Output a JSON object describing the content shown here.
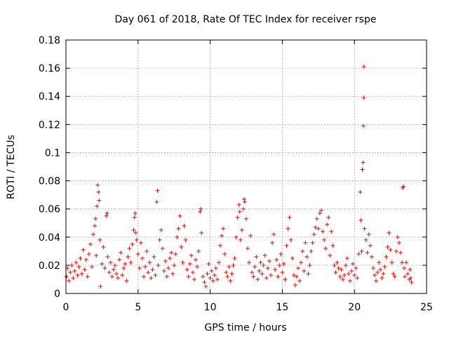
{
  "chart_data": {
    "type": "scatter",
    "title": "Day 061 of 2018, Rate Of TEC Index for receiver rspe",
    "xlabel": "GPS time / hours",
    "ylabel": "ROTI / TECUs",
    "xlim": [
      0,
      25
    ],
    "ylim": [
      0,
      0.18
    ],
    "xticks": [
      0,
      5,
      10,
      15,
      20,
      25
    ],
    "yticks": [
      0,
      0.02,
      0.04,
      0.06,
      0.08,
      0.1,
      0.12,
      0.14,
      0.16,
      0.18
    ],
    "grid": true,
    "marker": "+",
    "color": "#ff0000",
    "series": [
      {
        "name": "ROTI",
        "points": [
          [
            0.05,
            0.012
          ],
          [
            0.1,
            0.018
          ],
          [
            0.2,
            0.009
          ],
          [
            0.3,
            0.015
          ],
          [
            0.4,
            0.02
          ],
          [
            0.5,
            0.011
          ],
          [
            0.6,
            0.016
          ],
          [
            0.7,
            0.022
          ],
          [
            0.8,
            0.013
          ],
          [
            0.9,
            0.019
          ],
          [
            1.0,
            0.025
          ],
          [
            1.1,
            0.014
          ],
          [
            1.2,
            0.031
          ],
          [
            1.3,
            0.017
          ],
          [
            1.4,
            0.024
          ],
          [
            1.5,
            0.012
          ],
          [
            1.6,
            0.028
          ],
          [
            1.7,
            0.035
          ],
          [
            1.8,
            0.019
          ],
          [
            1.9,
            0.042
          ],
          [
            2.0,
            0.048
          ],
          [
            2.05,
            0.053
          ],
          [
            2.1,
            0.027
          ],
          [
            2.15,
            0.062
          ],
          [
            2.2,
            0.077
          ],
          [
            2.25,
            0.072
          ],
          [
            2.3,
            0.066
          ],
          [
            2.35,
            0.038
          ],
          [
            2.4,
            0.005
          ],
          [
            2.5,
            0.021
          ],
          [
            2.6,
            0.033
          ],
          [
            2.7,
            0.018
          ],
          [
            2.8,
            0.055
          ],
          [
            2.85,
            0.057
          ],
          [
            2.9,
            0.026
          ],
          [
            3.0,
            0.015
          ],
          [
            3.1,
            0.022
          ],
          [
            3.2,
            0.012
          ],
          [
            3.3,
            0.017
          ],
          [
            3.4,
            0.02
          ],
          [
            3.5,
            0.014
          ],
          [
            3.6,
            0.011
          ],
          [
            3.7,
            0.024
          ],
          [
            3.8,
            0.029
          ],
          [
            3.9,
            0.013
          ],
          [
            4.0,
            0.018
          ],
          [
            4.1,
            0.021
          ],
          [
            4.2,
            0.009
          ],
          [
            4.3,
            0.026
          ],
          [
            4.4,
            0.032
          ],
          [
            4.5,
            0.022
          ],
          [
            4.6,
            0.035
          ],
          [
            4.7,
            0.045
          ],
          [
            4.75,
            0.054
          ],
          [
            4.8,
            0.057
          ],
          [
            4.85,
            0.043
          ],
          [
            4.9,
            0.038
          ],
          [
            5.0,
            0.028
          ],
          [
            5.1,
            0.018
          ],
          [
            5.2,
            0.036
          ],
          [
            5.3,
            0.025
          ],
          [
            5.4,
            0.012
          ],
          [
            5.5,
            0.019
          ],
          [
            5.6,
            0.03
          ],
          [
            5.7,
            0.015
          ],
          [
            5.8,
            0.022
          ],
          [
            5.9,
            0.011
          ],
          [
            6.0,
            0.017
          ],
          [
            6.1,
            0.026
          ],
          [
            6.2,
            0.013
          ],
          [
            6.3,
            0.065
          ],
          [
            6.35,
            0.073
          ],
          [
            6.4,
            0.02
          ],
          [
            6.5,
            0.038
          ],
          [
            6.6,
            0.045
          ],
          [
            6.7,
            0.032
          ],
          [
            6.8,
            0.016
          ],
          [
            6.9,
            0.023
          ],
          [
            7.0,
            0.012
          ],
          [
            7.1,
            0.018
          ],
          [
            7.2,
            0.025
          ],
          [
            7.3,
            0.029
          ],
          [
            7.4,
            0.014
          ],
          [
            7.5,
            0.02
          ],
          [
            7.6,
            0.028
          ],
          [
            7.7,
            0.04
          ],
          [
            7.8,
            0.046
          ],
          [
            7.9,
            0.055
          ],
          [
            8.0,
            0.033
          ],
          [
            8.1,
            0.022
          ],
          [
            8.2,
            0.048
          ],
          [
            8.3,
            0.038
          ],
          [
            8.4,
            0.017
          ],
          [
            8.5,
            0.012
          ],
          [
            8.6,
            0.021
          ],
          [
            8.7,
            0.027
          ],
          [
            8.8,
            0.015
          ],
          [
            8.9,
            0.01
          ],
          [
            9.0,
            0.024
          ],
          [
            9.1,
            0.019
          ],
          [
            9.2,
            0.03
          ],
          [
            9.3,
            0.058
          ],
          [
            9.35,
            0.06
          ],
          [
            9.4,
            0.043
          ],
          [
            9.5,
            0.012
          ],
          [
            9.6,
            0.008
          ],
          [
            9.7,
            0.005
          ],
          [
            9.8,
            0.014
          ],
          [
            9.9,
            0.021
          ],
          [
            10.0,
            0.011
          ],
          [
            10.1,
            0.016
          ],
          [
            10.2,
            0.009
          ],
          [
            10.3,
            0.013
          ],
          [
            10.4,
            0.018
          ],
          [
            10.5,
            0.01
          ],
          [
            10.6,
            0.022
          ],
          [
            10.7,
            0.034
          ],
          [
            10.8,
            0.041
          ],
          [
            10.9,
            0.046
          ],
          [
            11.0,
            0.028
          ],
          [
            11.1,
            0.015
          ],
          [
            11.2,
            0.012
          ],
          [
            11.3,
            0.019
          ],
          [
            11.4,
            0.009
          ],
          [
            11.5,
            0.014
          ],
          [
            11.6,
            0.02
          ],
          [
            11.7,
            0.025
          ],
          [
            11.8,
            0.04
          ],
          [
            11.9,
            0.054
          ],
          [
            12.0,
            0.063
          ],
          [
            12.05,
            0.058
          ],
          [
            12.1,
            0.038
          ],
          [
            12.2,
            0.045
          ],
          [
            12.3,
            0.06
          ],
          [
            12.35,
            0.067
          ],
          [
            12.4,
            0.065
          ],
          [
            12.5,
            0.053
          ],
          [
            12.6,
            0.032
          ],
          [
            12.7,
            0.022
          ],
          [
            12.8,
            0.041
          ],
          [
            12.9,
            0.015
          ],
          [
            13.0,
            0.012
          ],
          [
            13.1,
            0.019
          ],
          [
            13.2,
            0.026
          ],
          [
            13.3,
            0.01
          ],
          [
            13.4,
            0.016
          ],
          [
            13.5,
            0.022
          ],
          [
            13.6,
            0.014
          ],
          [
            13.7,
            0.02
          ],
          [
            13.8,
            0.027
          ],
          [
            13.9,
            0.011
          ],
          [
            14.0,
            0.018
          ],
          [
            14.1,
            0.023
          ],
          [
            14.2,
            0.013
          ],
          [
            14.3,
            0.036
          ],
          [
            14.4,
            0.042
          ],
          [
            14.5,
            0.017
          ],
          [
            14.6,
            0.024
          ],
          [
            14.7,
            0.012
          ],
          [
            14.8,
            0.02
          ],
          [
            14.9,
            0.028
          ],
          [
            15.0,
            0.015
          ],
          [
            15.1,
            0.021
          ],
          [
            15.2,
            0.01
          ],
          [
            15.3,
            0.034
          ],
          [
            15.4,
            0.046
          ],
          [
            15.5,
            0.054
          ],
          [
            15.6,
            0.038
          ],
          [
            15.7,
            0.025
          ],
          [
            15.8,
            0.013
          ],
          [
            15.9,
            0.006
          ],
          [
            16.0,
            0.012
          ],
          [
            16.1,
            0.018
          ],
          [
            16.2,
            0.009
          ],
          [
            16.3,
            0.022
          ],
          [
            16.4,
            0.03
          ],
          [
            16.5,
            0.016
          ],
          [
            16.6,
            0.036
          ],
          [
            16.7,
            0.026
          ],
          [
            16.8,
            0.014
          ],
          [
            16.9,
            0.02
          ],
          [
            17.0,
            0.03
          ],
          [
            17.1,
            0.036
          ],
          [
            17.2,
            0.042
          ],
          [
            17.3,
            0.047
          ],
          [
            17.4,
            0.053
          ],
          [
            17.5,
            0.046
          ],
          [
            17.6,
            0.057
          ],
          [
            17.7,
            0.059
          ],
          [
            17.8,
            0.044
          ],
          [
            17.9,
            0.038
          ],
          [
            18.0,
            0.032
          ],
          [
            18.1,
            0.049
          ],
          [
            18.2,
            0.054
          ],
          [
            18.3,
            0.027
          ],
          [
            18.4,
            0.044
          ],
          [
            18.5,
            0.034
          ],
          [
            18.6,
            0.02
          ],
          [
            18.7,
            0.015
          ],
          [
            18.8,
            0.022
          ],
          [
            18.9,
            0.018
          ],
          [
            19.0,
            0.012
          ],
          [
            19.1,
            0.017
          ],
          [
            19.2,
            0.01
          ],
          [
            19.3,
            0.013
          ],
          [
            19.4,
            0.02
          ],
          [
            19.5,
            0.025
          ],
          [
            19.6,
            0.014
          ],
          [
            19.7,
            0.009
          ],
          [
            19.8,
            0.016
          ],
          [
            19.9,
            0.021
          ],
          [
            20.0,
            0.013
          ],
          [
            20.1,
            0.018
          ],
          [
            20.2,
            0.011
          ],
          [
            20.3,
            0.028
          ],
          [
            20.4,
            0.072
          ],
          [
            20.45,
            0.052
          ],
          [
            20.5,
            0.03
          ],
          [
            20.55,
            0.088
          ],
          [
            20.6,
            0.093
          ],
          [
            20.62,
            0.119
          ],
          [
            20.64,
            0.139
          ],
          [
            20.66,
            0.161
          ],
          [
            20.7,
            0.046
          ],
          [
            20.8,
            0.038
          ],
          [
            20.9,
            0.029
          ],
          [
            21.0,
            0.042
          ],
          [
            21.1,
            0.034
          ],
          [
            21.2,
            0.026
          ],
          [
            21.3,
            0.018
          ],
          [
            21.4,
            0.013
          ],
          [
            21.5,
            0.009
          ],
          [
            21.6,
            0.015
          ],
          [
            21.7,
            0.022
          ],
          [
            21.8,
            0.017
          ],
          [
            21.9,
            0.011
          ],
          [
            22.0,
            0.014
          ],
          [
            22.1,
            0.019
          ],
          [
            22.2,
            0.026
          ],
          [
            22.3,
            0.033
          ],
          [
            22.4,
            0.043
          ],
          [
            22.5,
            0.031
          ],
          [
            22.6,
            0.022
          ],
          [
            22.7,
            0.014
          ],
          [
            22.8,
            0.012
          ],
          [
            22.9,
            0.03
          ],
          [
            23.0,
            0.04
          ],
          [
            23.1,
            0.036
          ],
          [
            23.2,
            0.029
          ],
          [
            23.3,
            0.022
          ],
          [
            23.35,
            0.075
          ],
          [
            23.4,
            0.076
          ],
          [
            23.45,
            0.018
          ],
          [
            23.5,
            0.012
          ],
          [
            23.6,
            0.022
          ],
          [
            23.7,
            0.014
          ],
          [
            23.8,
            0.01
          ],
          [
            23.85,
            0.017
          ],
          [
            23.9,
            0.011
          ],
          [
            23.95,
            0.008
          ]
        ]
      }
    ]
  }
}
